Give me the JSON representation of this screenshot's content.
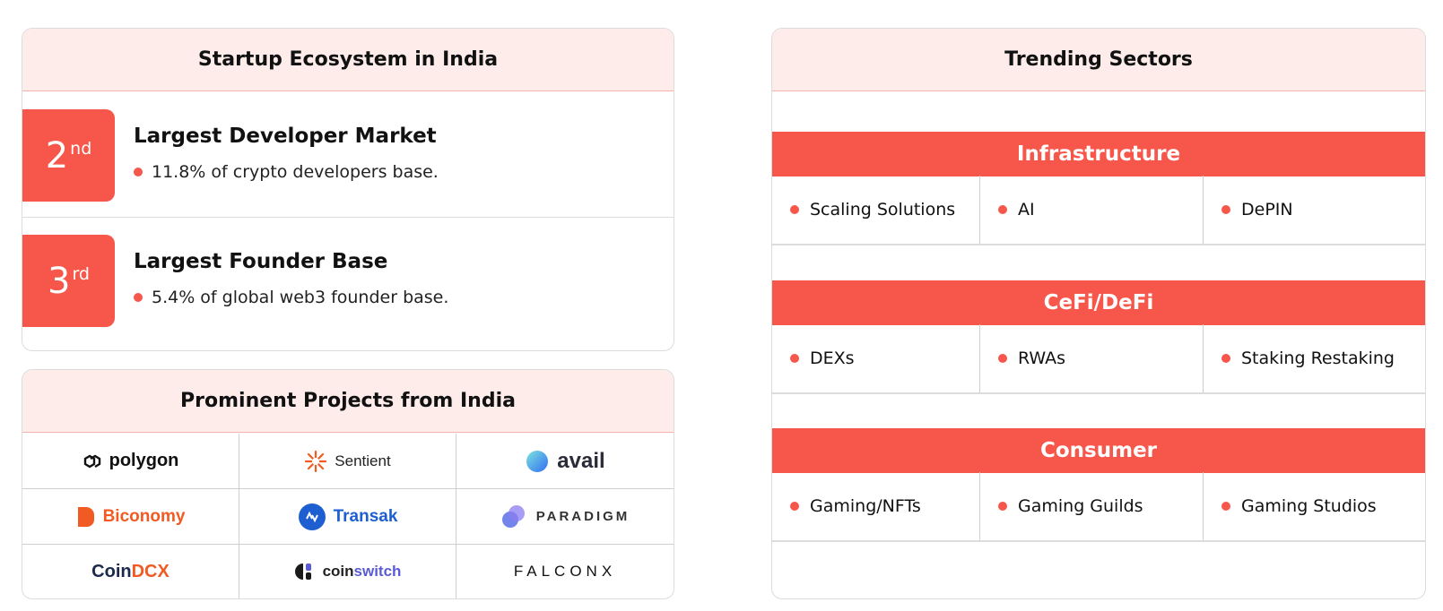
{
  "ecosystem": {
    "title": "Startup Ecosystem in India",
    "stats": [
      {
        "rank": "2",
        "suffix": "nd",
        "title": "Largest Developer Market",
        "desc": "11.8% of crypto developers base."
      },
      {
        "rank": "3",
        "suffix": "rd",
        "title": "Largest Founder Base",
        "desc": "5.4% of global web3 founder base."
      }
    ]
  },
  "projects": {
    "title": "Prominent Projects from India",
    "logos": [
      {
        "name": "polygon",
        "color": "#111111",
        "icon": "polygon-icon"
      },
      {
        "name": "Sentient",
        "color": "#222222",
        "icon": "sentient-icon"
      },
      {
        "name": "avail",
        "color": "#2b2b3a",
        "icon": "avail-icon"
      },
      {
        "name": "Biconomy",
        "color": "#f15a22",
        "icon": "biconomy-icon"
      },
      {
        "name": "Transak",
        "color": "#1d5fd1",
        "icon": "transak-icon"
      },
      {
        "name": "PARADIGM",
        "color": "#333333",
        "icon": "paradigm-icon"
      },
      {
        "name": "Coin",
        "name2": "DCX",
        "color": "#1b2a4a",
        "color2": "#f15a22",
        "icon": "coindcx-icon"
      },
      {
        "name": "coin",
        "name2": "switch",
        "color": "#222222",
        "color2": "#5b5bd6",
        "icon": "coinswitch-icon"
      },
      {
        "name": "FALCONX",
        "color": "#111111",
        "icon": "falconx-icon"
      }
    ]
  },
  "sectors": {
    "title": "Trending Sectors",
    "groups": [
      {
        "name": "Infrastructure",
        "items": [
          "Scaling Solutions",
          "AI",
          "DePIN"
        ]
      },
      {
        "name": "CeFi/DeFi",
        "items": [
          "DEXs",
          "RWAs",
          "Staking Restaking"
        ]
      },
      {
        "name": "Consumer",
        "items": [
          "Gaming/NFTs",
          "Gaming Guilds",
          "Gaming Studios"
        ]
      }
    ]
  },
  "colors": {
    "accent": "#f7574b",
    "header_bg": "#fdecea"
  }
}
